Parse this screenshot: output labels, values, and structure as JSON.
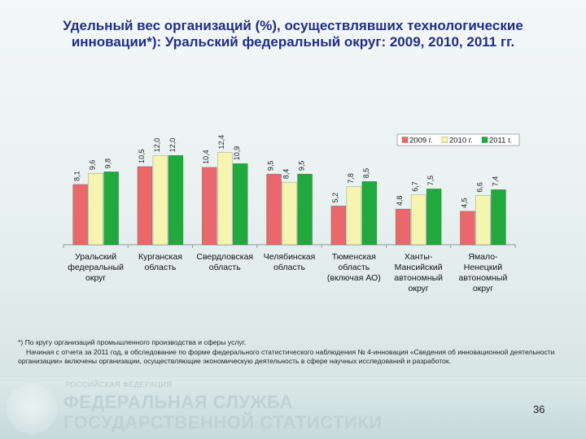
{
  "title_line1": "Удельный вес организаций (%), осуществлявших технологические",
  "title_line2": "инновации*): Уральский федеральный округ: 2009, 2010, 2011 гг.",
  "chart_data": {
    "type": "bar",
    "title": "Удельный вес организаций (%), осуществлявших технологические инновации*): Уральский федеральный округ: 2009, 2010, 2011 гг.",
    "categories": [
      [
        "Уральский",
        "федеральный",
        "округ"
      ],
      [
        "Курганская",
        "область"
      ],
      [
        "Свердловская",
        "область"
      ],
      [
        "Челябинская",
        "область"
      ],
      [
        "Тюменская",
        "область",
        "(включая АО)"
      ],
      [
        "Ханты-",
        "Мансийский",
        "автономный",
        "округ"
      ],
      [
        "Ямало-",
        "Ненецкий",
        "автономный",
        "округ"
      ]
    ],
    "series": [
      {
        "name": "2009 г.",
        "color": "#e8686c",
        "values": [
          8.1,
          10.5,
          10.4,
          9.5,
          5.2,
          4.8,
          4.5
        ],
        "labels": [
          "8,1",
          "10,5",
          "10,4",
          "9,5",
          "5,2",
          "4,8",
          "4,5"
        ]
      },
      {
        "name": "2010 г.",
        "color": "#f5f4b0",
        "values": [
          9.6,
          12.0,
          12.4,
          8.4,
          7.8,
          6.7,
          6.6
        ],
        "labels": [
          "9,6",
          "12,0",
          "12,4",
          "8,4",
          "7,8",
          "6,7",
          "6,6"
        ]
      },
      {
        "name": "2011 г.",
        "color": "#22a93d",
        "values": [
          9.8,
          12.0,
          10.9,
          9.5,
          8.5,
          7.5,
          7.4
        ],
        "labels": [
          "9,8",
          "12,0",
          "10,9",
          "9,5",
          "8,5",
          "7,5",
          "7,4"
        ]
      }
    ],
    "ylim": [
      0,
      14
    ],
    "legend": "top-right",
    "grid": false
  },
  "footnote": {
    "line1": "*) По кругу организаций промышленного производства и сферы услуг.",
    "line2": "Начиная с отчета за 2011 год, в обследование по форме федерального статистического наблюдения № 4-инновация «Сведения об инновационной деятельности организации» включены организации, осуществляющие экономическую деятельность в сфере научных исследований и разработок."
  },
  "footer": {
    "federation": "РОССИЙСКАЯ ФЕДЕРАЦИЯ",
    "org_line1": "ФЕДЕРАЛЬНАЯ СЛУЖБА",
    "org_line2": "ГОСУДАРСТВЕННОЙ СТАТИСТИКИ",
    "page_number": "36"
  }
}
